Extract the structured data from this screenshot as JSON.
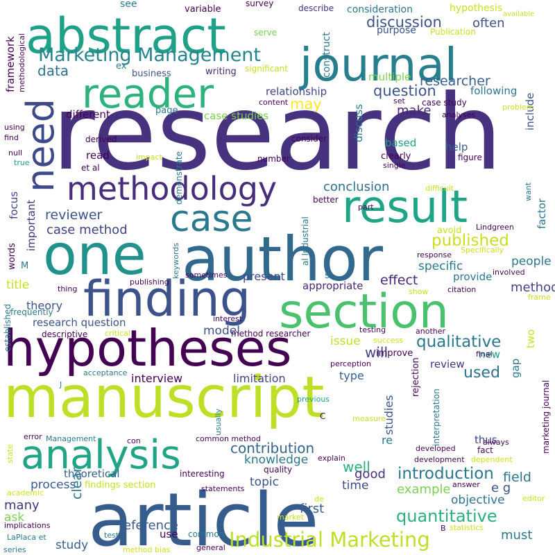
{
  "words": [
    {
      "text": "research",
      "color": "#46327e"
    },
    {
      "text": "manuscript",
      "color": "#bddf26"
    },
    {
      "text": "article",
      "color": "#365c8d"
    },
    {
      "text": "hypotheses",
      "color": "#440154"
    },
    {
      "text": "author",
      "color": "#31688e"
    },
    {
      "text": "one",
      "color": "#21918c"
    },
    {
      "text": "journal",
      "color": "#277f8e"
    },
    {
      "text": "abstract",
      "color": "#1fa187"
    },
    {
      "text": "finding",
      "color": "#3b528b"
    },
    {
      "text": "section",
      "color": "#4ac16d"
    },
    {
      "text": "result",
      "color": "#20a486"
    },
    {
      "text": "reader",
      "color": "#2db27d"
    },
    {
      "text": "need",
      "color": "#3e4989"
    },
    {
      "text": "analysis",
      "color": "#20a486"
    },
    {
      "text": "case",
      "color": "#2a788e"
    },
    {
      "text": "methodology",
      "color": "#472d7b"
    },
    {
      "text": "Marketing Management",
      "color": "#25858e"
    },
    {
      "text": "Industrial Marketing",
      "color": "#bddf26"
    },
    {
      "text": "qualitative",
      "color": "#2a788e"
    },
    {
      "text": "quantitative",
      "color": "#2ab07f"
    },
    {
      "text": "introduction",
      "color": "#2a788e"
    },
    {
      "text": "published",
      "color": "#c8e020"
    },
    {
      "text": "discussion",
      "color": "#3b528b"
    },
    {
      "text": "researcher",
      "color": "#355f8d"
    },
    {
      "text": "conclusion",
      "color": "#2c728e"
    },
    {
      "text": "contribution",
      "color": "#32648e"
    },
    {
      "text": "used",
      "color": "#2c728e"
    },
    {
      "text": "question",
      "color": "#3b528b"
    },
    {
      "text": "data",
      "color": "#2c728e"
    },
    {
      "text": "reviewer",
      "color": "#3b528b"
    },
    {
      "text": "case method",
      "color": "#404387"
    },
    {
      "text": "may",
      "color": "#fde725"
    },
    {
      "text": "make",
      "color": "#482475"
    },
    {
      "text": "method",
      "color": "#404387"
    },
    {
      "text": "effect",
      "color": "#482878"
    },
    {
      "text": "specific",
      "color": "#2a788e"
    },
    {
      "text": "provide",
      "color": "#2a788e"
    },
    {
      "text": "people",
      "color": "#2a788e"
    },
    {
      "text": "example",
      "color": "#7ad151"
    },
    {
      "text": "objective",
      "color": "#2c728e"
    },
    {
      "text": "field",
      "color": "#2a788e"
    },
    {
      "text": "well",
      "color": "#2ab07f"
    },
    {
      "text": "knowledge",
      "color": "#2a788e"
    },
    {
      "text": "process",
      "color": "#365c8d"
    },
    {
      "text": "theoretical",
      "color": "#355f8d"
    },
    {
      "text": "limitation",
      "color": "#404387"
    },
    {
      "text": "interview",
      "color": "#440154"
    },
    {
      "text": "many",
      "color": "#46327e"
    },
    {
      "text": "ask",
      "color": "#7ad151"
    },
    {
      "text": "first",
      "color": "#365c8d"
    },
    {
      "text": "time",
      "color": "#3e4989"
    },
    {
      "text": "topic",
      "color": "#3b528b"
    },
    {
      "text": "clear",
      "color": "#2a788e"
    },
    {
      "text": "study",
      "color": "#355f8d"
    },
    {
      "text": "use",
      "color": "#440154"
    },
    {
      "text": "reference",
      "color": "#365c8d"
    },
    {
      "text": "must",
      "color": "#2a788e"
    },
    {
      "text": "good",
      "color": "#46327e"
    },
    {
      "text": "re",
      "color": "#2a788e"
    },
    {
      "text": "thus",
      "color": "#404387"
    },
    {
      "text": "e g",
      "color": "#3b528b"
    },
    {
      "text": "new",
      "color": "#1fa187"
    },
    {
      "text": "review",
      "color": "#46327e"
    },
    {
      "text": "issue",
      "color": "#bddf26"
    },
    {
      "text": "will",
      "color": "#404387"
    },
    {
      "text": "type",
      "color": "#355f8d"
    },
    {
      "text": "studies",
      "color": "#3b528b"
    },
    {
      "text": "model",
      "color": "#3b528b"
    },
    {
      "text": "research question",
      "color": "#3b528b"
    },
    {
      "text": "theory",
      "color": "#3b528b"
    },
    {
      "text": "title",
      "color": "#c8e020"
    },
    {
      "text": "appropriate",
      "color": "#482878"
    },
    {
      "text": "present",
      "color": "#3e4989"
    },
    {
      "text": "important",
      "color": "#46327e"
    },
    {
      "text": "focus",
      "color": "#404387"
    },
    {
      "text": "framework",
      "color": "#440154"
    },
    {
      "text": "words",
      "color": "#440154"
    },
    {
      "text": "different",
      "color": "#440154"
    },
    {
      "text": "page",
      "color": "#2a788e"
    },
    {
      "text": "case studies",
      "color": "#7ad151"
    },
    {
      "text": "read",
      "color": "#440154"
    },
    {
      "text": "based",
      "color": "#1fa187"
    },
    {
      "text": "clearly",
      "color": "#440154"
    },
    {
      "text": "help",
      "color": "#355f8d"
    },
    {
      "text": "include",
      "color": "#3b528b"
    },
    {
      "text": "factor",
      "color": "#2a788e"
    },
    {
      "text": "two",
      "color": "#c8e020"
    },
    {
      "text": "gap",
      "color": "#2a788e"
    },
    {
      "text": "discuss",
      "color": "#2a788e"
    },
    {
      "text": "following",
      "color": "#2a788e"
    },
    {
      "text": "consideration",
      "color": "#2a788e"
    },
    {
      "text": "often",
      "color": "#3b528b"
    },
    {
      "text": "hypothesis",
      "color": "#c8e020"
    },
    {
      "text": "relationship",
      "color": "#404387"
    },
    {
      "text": "multiple",
      "color": "#7ad151"
    },
    {
      "text": "purpose",
      "color": "#3b528b"
    },
    {
      "text": "business",
      "color": "#3b528b"
    },
    {
      "text": "variable",
      "color": "#440154"
    },
    {
      "text": "construct",
      "color": "#2a788e"
    },
    {
      "text": "see",
      "color": "#2a788e"
    },
    {
      "text": "ex",
      "color": "#2a788e"
    },
    {
      "text": "survey",
      "color": "#440154"
    },
    {
      "text": "describe",
      "color": "#46327e"
    },
    {
      "text": "writing",
      "color": "#482878"
    },
    {
      "text": "significant",
      "color": "#c8e020"
    },
    {
      "text": "content",
      "color": "#440154"
    },
    {
      "text": "serve",
      "color": "#7ad151"
    },
    {
      "text": "Publication",
      "color": "#c8e020"
    },
    {
      "text": "available",
      "color": "#c8e020"
    },
    {
      "text": "methodological",
      "color": "#440154"
    },
    {
      "text": "case study",
      "color": "#440154"
    },
    {
      "text": "set",
      "color": "#440154"
    },
    {
      "text": "analyses",
      "color": "#440154"
    },
    {
      "text": "problem",
      "color": "#c8e020"
    },
    {
      "text": "derived",
      "color": "#440154"
    },
    {
      "text": "consider",
      "color": "#440154"
    },
    {
      "text": "impact",
      "color": "#c8e020"
    },
    {
      "text": "demonstrate",
      "color": "#2a788e"
    },
    {
      "text": "number",
      "color": "#440154"
    },
    {
      "text": "figure",
      "color": "#440154"
    },
    {
      "text": "single",
      "color": "#440154"
    },
    {
      "text": "et al",
      "color": "#440154"
    },
    {
      "text": "using",
      "color": "#440154"
    },
    {
      "text": "find",
      "color": "#440154"
    },
    {
      "text": "null",
      "color": "#440154"
    },
    {
      "text": "true",
      "color": "#1fa187"
    },
    {
      "text": "difficult",
      "color": "#c8e020"
    },
    {
      "text": "want",
      "color": "#2a788e"
    },
    {
      "text": "better",
      "color": "#440154"
    },
    {
      "text": "part",
      "color": "#440154"
    },
    {
      "text": "al Industrial",
      "color": "#2a788e"
    },
    {
      "text": "keywords",
      "color": "#2a788e"
    },
    {
      "text": "avoid",
      "color": "#c8e020"
    },
    {
      "text": "Lindgreen",
      "color": "#440154"
    },
    {
      "text": "response",
      "color": "#440154"
    },
    {
      "text": "Specifically",
      "color": "#c8e020"
    },
    {
      "text": "involved",
      "color": "#440154"
    },
    {
      "text": "sometimes",
      "color": "#440154"
    },
    {
      "text": "publishing",
      "color": "#440154"
    },
    {
      "text": "thing",
      "color": "#440154"
    },
    {
      "text": "s",
      "color": "#2a788e"
    },
    {
      "text": "M",
      "color": "#2a788e"
    },
    {
      "text": "show",
      "color": "#c8e020"
    },
    {
      "text": "citation",
      "color": "#440154"
    },
    {
      "text": "frame",
      "color": "#c8e020"
    },
    {
      "text": "established",
      "color": "#2a788e"
    },
    {
      "text": "frequently",
      "color": "#2a788e"
    },
    {
      "text": "interest",
      "color": "#440154"
    },
    {
      "text": "critical",
      "color": "#c8e020"
    },
    {
      "text": "descriptive",
      "color": "#440154"
    },
    {
      "text": "method researcher",
      "color": "#440154"
    },
    {
      "text": "another",
      "color": "#440154"
    },
    {
      "text": "testing",
      "color": "#440154"
    },
    {
      "text": "improve",
      "color": "#440154"
    },
    {
      "text": "success",
      "color": "#c8e020"
    },
    {
      "text": "final",
      "color": "#440154"
    },
    {
      "text": "perception",
      "color": "#440154"
    },
    {
      "text": "acceptance",
      "color": "#2a788e"
    },
    {
      "text": "rejection",
      "color": "#440154"
    },
    {
      "text": "J",
      "color": "#2a788e"
    },
    {
      "text": "usually",
      "color": "#2a788e"
    },
    {
      "text": "previous",
      "color": "#1fa187"
    },
    {
      "text": "C",
      "color": "#440154"
    },
    {
      "text": "interpretation",
      "color": "#2a788e"
    },
    {
      "text": "marketing journal",
      "color": "#440154"
    },
    {
      "text": "measure",
      "color": "#c8e020"
    },
    {
      "text": "error",
      "color": "#440154"
    },
    {
      "text": "Management",
      "color": "#2a788e"
    },
    {
      "text": "con",
      "color": "#440154"
    },
    {
      "text": "common method",
      "color": "#440154"
    },
    {
      "text": "developed",
      "color": "#440154"
    },
    {
      "text": "always",
      "color": "#440154"
    },
    {
      "text": "state",
      "color": "#c8e020"
    },
    {
      "text": "explain",
      "color": "#440154"
    },
    {
      "text": "development",
      "color": "#440154"
    },
    {
      "text": "fact",
      "color": "#440154"
    },
    {
      "text": "dependent",
      "color": "#c8e020"
    },
    {
      "text": "academic",
      "color": "#c8e020"
    },
    {
      "text": "findings section",
      "color": "#c8e020"
    },
    {
      "text": "interesting",
      "color": "#440154"
    },
    {
      "text": "quality",
      "color": "#440154"
    },
    {
      "text": "answer",
      "color": "#440154"
    },
    {
      "text": "editor",
      "color": "#c8e020"
    },
    {
      "text": "statements",
      "color": "#440154"
    },
    {
      "text": "de",
      "color": "#c8e020"
    },
    {
      "text": "market",
      "color": "#c8e020"
    },
    {
      "text": "implications",
      "color": "#440154"
    },
    {
      "text": "LaPlaca et",
      "color": "#2a788e"
    },
    {
      "text": "test",
      "color": "#2a788e"
    },
    {
      "text": "common",
      "color": "#2a788e"
    },
    {
      "text": "B",
      "color": "#440154"
    },
    {
      "text": "statistics",
      "color": "#c8e020"
    },
    {
      "text": "series",
      "color": "#2a788e"
    },
    {
      "text": "method bias",
      "color": "#c8e020"
    },
    {
      "text": "general",
      "color": "#440154"
    }
  ]
}
